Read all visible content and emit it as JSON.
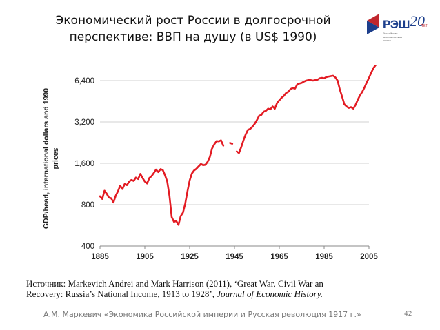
{
  "slide": {
    "title_line1": "Экономический рост России в долгосрочной",
    "title_line2": "перспективе: ВВП на душу (в US$ 1990)",
    "source_line1": "Источник: Markevich Andrei and Mark Harrison (2011), ‘Great  War, Civil War an",
    "source_line2_a": "Recovery: Russia’s National Income, 1913 to 1928’, ",
    "source_line2_b": "Journal of Economic History.",
    "footer": "А.М. Маркевич «Экономика Российской империи и Русская революция 1917 г.»",
    "page_number": "42"
  },
  "logo": {
    "name": "РЭШ",
    "anniversary": "20",
    "years_label": "ЛЕТ",
    "subtitle_lines": [
      "Российская",
      "экономическая",
      "школа"
    ],
    "colors": {
      "blue": "#1d3f8c",
      "red": "#c0272d"
    }
  },
  "chart_data": {
    "type": "line",
    "ylabel_line1": "GDP/head, international dollars and 1990",
    "ylabel_line2": "prices",
    "xlabel": "",
    "y_scale": "log",
    "ylim": [
      400,
      8000
    ],
    "xlim": [
      1885,
      2010
    ],
    "y_ticks": [
      400,
      800,
      1600,
      3200,
      6400
    ],
    "y_tick_labels": [
      "400",
      "800",
      "1,600",
      "3,200",
      "6,400"
    ],
    "x_ticks": [
      1885,
      1905,
      1925,
      1945,
      1965,
      1985,
      2005
    ],
    "x_tick_labels": [
      "1885",
      "1905",
      "1925",
      "1945",
      "1965",
      "1985",
      "2005"
    ],
    "grid": "horizontal",
    "line_color": "#e31b23",
    "series": [
      {
        "segments": [
          [
            [
              1885,
              920
            ],
            [
              1886,
              880
            ],
            [
              1887,
              1010
            ],
            [
              1888,
              960
            ],
            [
              1889,
              900
            ],
            [
              1890,
              890
            ],
            [
              1891,
              830
            ],
            [
              1892,
              930
            ],
            [
              1893,
              1000
            ],
            [
              1894,
              1100
            ],
            [
              1895,
              1040
            ],
            [
              1896,
              1130
            ],
            [
              1897,
              1110
            ],
            [
              1898,
              1180
            ],
            [
              1899,
              1210
            ],
            [
              1900,
              1190
            ],
            [
              1901,
              1260
            ],
            [
              1902,
              1230
            ],
            [
              1903,
              1340
            ],
            [
              1904,
              1250
            ],
            [
              1905,
              1180
            ],
            [
              1906,
              1140
            ],
            [
              1907,
              1250
            ],
            [
              1908,
              1290
            ],
            [
              1909,
              1360
            ],
            [
              1910,
              1440
            ],
            [
              1911,
              1380
            ],
            [
              1912,
              1450
            ],
            [
              1913,
              1430
            ],
            [
              1914,
              1310
            ],
            [
              1915,
              1180
            ],
            [
              1916,
              920
            ],
            [
              1917,
              650
            ],
            [
              1918,
              600
            ],
            [
              1919,
              610
            ],
            [
              1920,
              570
            ],
            [
              1921,
              660
            ],
            [
              1922,
              700
            ],
            [
              1923,
              810
            ],
            [
              1924,
              1000
            ],
            [
              1925,
              1200
            ],
            [
              1926,
              1350
            ],
            [
              1927,
              1420
            ],
            [
              1928,
              1460
            ],
            [
              1929,
              1520
            ],
            [
              1930,
              1580
            ],
            [
              1931,
              1550
            ],
            [
              1932,
              1560
            ],
            [
              1933,
              1640
            ],
            [
              1934,
              1780
            ],
            [
              1935,
              2050
            ],
            [
              1936,
              2200
            ],
            [
              1937,
              2320
            ],
            [
              1938,
              2310
            ],
            [
              1939,
              2350
            ],
            [
              1940,
              2150
            ]
          ],
          [
            [
              1943,
              2250
            ],
            [
              1944,
              2220
            ]
          ],
          [
            [
              1946,
              1950
            ],
            [
              1947,
              1900
            ],
            [
              1948,
              2100
            ],
            [
              1949,
              2350
            ],
            [
              1950,
              2600
            ],
            [
              1951,
              2800
            ],
            [
              1952,
              2850
            ],
            [
              1953,
              2950
            ],
            [
              1954,
              3100
            ],
            [
              1955,
              3300
            ],
            [
              1956,
              3550
            ],
            [
              1957,
              3600
            ],
            [
              1958,
              3800
            ],
            [
              1959,
              3850
            ],
            [
              1960,
              4000
            ],
            [
              1961,
              3950
            ],
            [
              1962,
              4150
            ],
            [
              1963,
              4000
            ],
            [
              1964,
              4400
            ],
            [
              1965,
              4600
            ],
            [
              1966,
              4800
            ],
            [
              1967,
              4950
            ],
            [
              1968,
              5200
            ],
            [
              1969,
              5300
            ],
            [
              1970,
              5550
            ],
            [
              1971,
              5650
            ],
            [
              1972,
              5600
            ],
            [
              1973,
              6000
            ],
            [
              1974,
              6100
            ],
            [
              1975,
              6150
            ],
            [
              1976,
              6300
            ],
            [
              1977,
              6400
            ],
            [
              1978,
              6450
            ],
            [
              1979,
              6450
            ],
            [
              1980,
              6400
            ],
            [
              1981,
              6450
            ],
            [
              1982,
              6500
            ],
            [
              1983,
              6650
            ],
            [
              1984,
              6700
            ],
            [
              1985,
              6650
            ],
            [
              1986,
              6800
            ],
            [
              1987,
              6850
            ],
            [
              1988,
              6900
            ],
            [
              1989,
              6950
            ],
            [
              1990,
              6750
            ],
            [
              1991,
              6400
            ],
            [
              1992,
              5500
            ],
            [
              1993,
              4900
            ],
            [
              1994,
              4300
            ],
            [
              1995,
              4150
            ],
            [
              1996,
              4050
            ],
            [
              1997,
              4100
            ],
            [
              1998,
              4000
            ],
            [
              1999,
              4250
            ],
            [
              2000,
              4650
            ],
            [
              2001,
              5000
            ],
            [
              2002,
              5300
            ],
            [
              2003,
              5700
            ],
            [
              2004,
              6200
            ],
            [
              2005,
              6700
            ],
            [
              2006,
              7300
            ],
            [
              2007,
              7900
            ],
            [
              2008,
              8300
            ]
          ]
        ]
      }
    ]
  }
}
